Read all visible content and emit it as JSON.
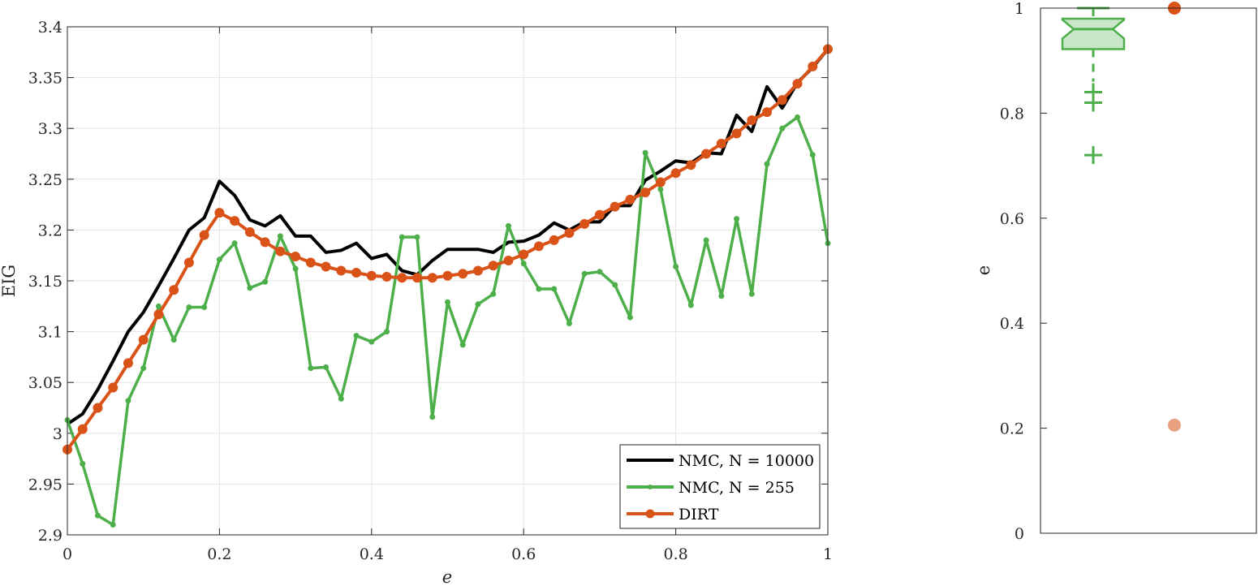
{
  "chart_data": [
    {
      "type": "line",
      "xlabel": "e",
      "ylabel": "EIG",
      "xlim": [
        0,
        1
      ],
      "ylim": [
        2.9,
        3.4
      ],
      "x_ticks": [
        "0",
        "0.2",
        "0.4",
        "0.6",
        "0.8",
        "1"
      ],
      "y_ticks": [
        "2.9",
        "2.95",
        "3",
        "3.05",
        "3.1",
        "3.15",
        "3.2",
        "3.25",
        "3.3",
        "3.35",
        "3.4"
      ],
      "grid": true,
      "legend_position": "bottom-right",
      "series": [
        {
          "name": "NMC, N = 10000",
          "color": "#000000",
          "marker": "none",
          "x": [
            0,
            0.02,
            0.04,
            0.06,
            0.08,
            0.1,
            0.12,
            0.14,
            0.16,
            0.18,
            0.2,
            0.22,
            0.24,
            0.26,
            0.28,
            0.3,
            0.32,
            0.34,
            0.36,
            0.38,
            0.4,
            0.42,
            0.44,
            0.46,
            0.48,
            0.5,
            0.52,
            0.54,
            0.56,
            0.58,
            0.6,
            0.62,
            0.64,
            0.66,
            0.68,
            0.7,
            0.72,
            0.74,
            0.76,
            0.78,
            0.8,
            0.82,
            0.84,
            0.86,
            0.88,
            0.9,
            0.92,
            0.94,
            0.96,
            0.98,
            1.0
          ],
          "values": [
            3.009,
            3.019,
            3.043,
            3.071,
            3.1,
            3.119,
            3.145,
            3.172,
            3.2,
            3.212,
            3.248,
            3.234,
            3.21,
            3.204,
            3.214,
            3.194,
            3.194,
            3.178,
            3.18,
            3.187,
            3.172,
            3.176,
            3.16,
            3.156,
            3.17,
            3.181,
            3.181,
            3.181,
            3.178,
            3.188,
            3.189,
            3.195,
            3.207,
            3.2,
            3.208,
            3.208,
            3.224,
            3.224,
            3.249,
            3.258,
            3.268,
            3.266,
            3.276,
            3.275,
            3.313,
            3.297,
            3.341,
            3.32,
            3.345,
            3.36,
            3.378
          ]
        },
        {
          "name": "NMC, N = 255",
          "color": "#4daf4a",
          "marker": "dot",
          "x": [
            0,
            0.02,
            0.04,
            0.06,
            0.08,
            0.1,
            0.12,
            0.14,
            0.16,
            0.18,
            0.2,
            0.22,
            0.24,
            0.26,
            0.28,
            0.3,
            0.32,
            0.34,
            0.36,
            0.38,
            0.4,
            0.42,
            0.44,
            0.46,
            0.48,
            0.5,
            0.52,
            0.54,
            0.56,
            0.58,
            0.6,
            0.62,
            0.64,
            0.66,
            0.68,
            0.7,
            0.72,
            0.74,
            0.76,
            0.78,
            0.8,
            0.82,
            0.84,
            0.86,
            0.88,
            0.9,
            0.92,
            0.94,
            0.96,
            0.98,
            1.0
          ],
          "values": [
            3.013,
            2.97,
            2.919,
            2.91,
            3.032,
            3.064,
            3.125,
            3.092,
            3.124,
            3.124,
            3.171,
            3.187,
            3.143,
            3.149,
            3.194,
            3.162,
            3.064,
            3.065,
            3.034,
            3.096,
            3.09,
            3.1,
            3.193,
            3.193,
            3.016,
            3.129,
            3.087,
            3.127,
            3.137,
            3.204,
            3.167,
            3.142,
            3.142,
            3.108,
            3.157,
            3.159,
            3.146,
            3.114,
            3.276,
            3.24,
            3.164,
            3.126,
            3.19,
            3.135,
            3.211,
            3.137,
            3.265,
            3.3,
            3.311,
            3.274,
            3.187
          ]
        },
        {
          "name": "DIRT",
          "color": "#d95319",
          "marker": "circle",
          "x": [
            0,
            0.02,
            0.04,
            0.06,
            0.08,
            0.1,
            0.12,
            0.14,
            0.16,
            0.18,
            0.2,
            0.22,
            0.24,
            0.26,
            0.28,
            0.3,
            0.32,
            0.34,
            0.36,
            0.38,
            0.4,
            0.42,
            0.44,
            0.46,
            0.48,
            0.5,
            0.52,
            0.54,
            0.56,
            0.58,
            0.6,
            0.62,
            0.64,
            0.66,
            0.68,
            0.7,
            0.72,
            0.74,
            0.76,
            0.78,
            0.8,
            0.82,
            0.84,
            0.86,
            0.88,
            0.9,
            0.92,
            0.94,
            0.96,
            0.98,
            1.0
          ],
          "values": [
            2.984,
            3.004,
            3.025,
            3.045,
            3.069,
            3.092,
            3.117,
            3.141,
            3.168,
            3.195,
            3.217,
            3.209,
            3.198,
            3.188,
            3.179,
            3.174,
            3.168,
            3.164,
            3.16,
            3.158,
            3.155,
            3.154,
            3.153,
            3.153,
            3.153,
            3.155,
            3.157,
            3.16,
            3.165,
            3.17,
            3.176,
            3.184,
            3.19,
            3.197,
            3.206,
            3.215,
            3.223,
            3.23,
            3.237,
            3.247,
            3.256,
            3.264,
            3.275,
            3.285,
            3.295,
            3.308,
            3.316,
            3.328,
            3.344,
            3.361,
            3.378
          ]
        }
      ]
    },
    {
      "type": "box",
      "ylabel": "e",
      "ylim": [
        0,
        1
      ],
      "y_ticks": [
        "0",
        "0.2",
        "0.4",
        "0.6",
        "0.8",
        "1"
      ],
      "grid": false,
      "box": {
        "color": "#4daf4a",
        "median": 0.96,
        "q1": 0.922,
        "q3": 0.98,
        "notch_low": 0.942,
        "notch_high": 0.978,
        "whisker_low": 0.86,
        "whisker_high": 1.0,
        "outliers": [
          0.84,
          0.82,
          0.72
        ]
      },
      "points": [
        {
          "value": 1.0,
          "color": "#d95319"
        },
        {
          "value": 0.206,
          "color": "#e8a080"
        }
      ]
    }
  ]
}
